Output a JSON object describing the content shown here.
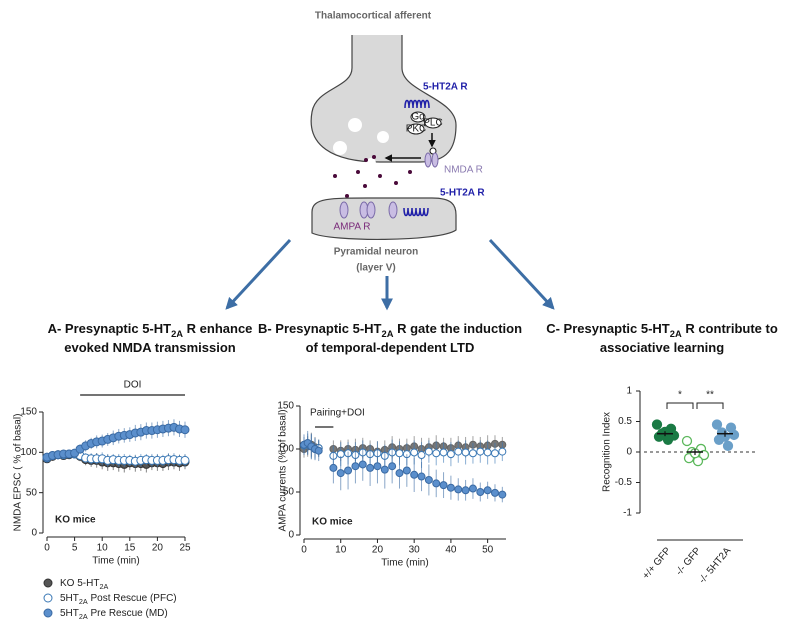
{
  "diagram": {
    "title": "Thalamocortical afferent",
    "receptor_top": "5-HT2A R",
    "gq": "Gq",
    "plc": "PLC",
    "pkc": "PKC",
    "nmda": "NMDA R",
    "receptor_bottom": "5-HT2A R",
    "ampa": "AMPA R",
    "neuron": "Pyramidal neuron",
    "layer": "(layer V)"
  },
  "chart_data": [
    {
      "type": "errorbar",
      "title": [
        "A- Presynaptic 5-HT2A R enhance",
        "evoked NMDA transmission"
      ],
      "x_label": "Time (min)",
      "y_label": "NMDA EPSC ( % of basal)",
      "annotation": "KO mice",
      "bar_label": "DOI",
      "bar_range": [
        6,
        25
      ],
      "x": [
        0,
        1,
        2,
        3,
        4,
        5,
        6,
        7,
        8,
        9,
        10,
        11,
        12,
        13,
        14,
        15,
        16,
        17,
        18,
        19,
        20,
        21,
        22,
        23,
        24,
        25
      ],
      "xlim": [
        0,
        25
      ],
      "xticks": [
        0,
        5,
        10,
        15,
        20,
        25
      ],
      "ylim": [
        0,
        150
      ],
      "yticks": [
        0,
        50,
        100,
        150
      ],
      "series": [
        {
          "name": "KO  5-HT2A",
          "color": "#555555",
          "edgecolor": "#333333",
          "values": [
            92,
            95,
            97,
            96,
            97,
            98,
            95,
            91,
            90,
            90,
            88,
            87,
            87,
            86,
            85,
            87,
            86,
            86,
            85,
            87,
            87,
            86,
            88,
            88,
            87,
            88
          ],
          "errors": [
            5,
            4,
            4,
            5,
            4,
            4,
            6,
            7,
            8,
            9,
            9,
            10,
            9,
            10,
            10,
            9,
            10,
            9,
            10,
            9,
            10,
            9,
            10,
            9,
            10,
            9
          ]
        },
        {
          "name": "5HT2A Post Rescue (PFC)",
          "color": "#ffffff",
          "edgecolor": "#3a78b5",
          "values": [
            93,
            96,
            97,
            97,
            98,
            98,
            96,
            93,
            92,
            92,
            92,
            90,
            91,
            90,
            90,
            90,
            89,
            90,
            91,
            90,
            90,
            90,
            91,
            91,
            90,
            90
          ],
          "errors": [
            5,
            4,
            4,
            4,
            4,
            5,
            6,
            6,
            7,
            7,
            8,
            8,
            7,
            8,
            8,
            7,
            8,
            8,
            7,
            8,
            8,
            7,
            8,
            8,
            7,
            8
          ]
        },
        {
          "name": "5HT2A Pre Rescue (MD)",
          "color": "#5b8fcc",
          "edgecolor": "#3a6aa3",
          "values": [
            94,
            96,
            97,
            98,
            98,
            99,
            104,
            108,
            111,
            113,
            114,
            116,
            118,
            120,
            121,
            122,
            124,
            125,
            127,
            127,
            128,
            129,
            130,
            131,
            129,
            128
          ],
          "errors": [
            5,
            4,
            4,
            4,
            5,
            5,
            6,
            7,
            7,
            8,
            8,
            8,
            9,
            9,
            9,
            9,
            10,
            10,
            10,
            10,
            10,
            10,
            10,
            10,
            10,
            10
          ]
        }
      ]
    },
    {
      "type": "errorbar",
      "title": [
        "B- Presynaptic 5-HT2A R gate the induction",
        "of temporal-dependent LTD"
      ],
      "x_label": "Time (min)",
      "y_label": "AMPA currents (% of basal)",
      "annotation": "KO mice",
      "bar_label": "Pairing+DOI",
      "bar_range": [
        3,
        8
      ],
      "x": [
        0,
        1,
        2,
        3,
        4,
        8,
        10,
        12,
        14,
        16,
        18,
        20,
        22,
        24,
        26,
        28,
        30,
        32,
        34,
        36,
        38,
        40,
        42,
        44,
        46,
        48,
        50,
        52,
        54
      ],
      "xlim": [
        0,
        55
      ],
      "xticks": [
        0,
        10,
        20,
        30,
        40,
        50
      ],
      "ylim": [
        0,
        150
      ],
      "yticks": [
        0,
        50,
        100,
        150
      ],
      "series": [
        {
          "color": "#777777",
          "edgecolor": "#666666",
          "values": [
            100,
            103,
            105,
            102,
            101,
            100,
            98,
            100,
            99,
            101,
            100,
            97,
            99,
            102,
            100,
            101,
            103,
            100,
            102,
            104,
            103,
            101,
            104,
            102,
            105,
            103,
            104,
            106,
            105
          ],
          "errors": [
            10,
            12,
            14,
            12,
            10,
            10,
            12,
            11,
            13,
            12,
            10,
            12,
            11,
            13,
            12,
            11,
            12,
            13,
            11,
            12,
            10,
            12,
            11,
            12,
            10,
            11,
            12,
            10,
            9
          ]
        },
        {
          "color": "#ffffff",
          "edgecolor": "#3a78b5",
          "values": [
            104,
            106,
            103,
            100,
            101,
            92,
            94,
            95,
            93,
            96,
            94,
            95,
            92,
            96,
            95,
            94,
            96,
            93,
            97,
            95,
            96,
            94,
            97,
            96,
            95,
            97,
            96,
            95,
            97
          ],
          "errors": [
            10,
            12,
            14,
            12,
            10,
            12,
            14,
            13,
            15,
            14,
            12,
            14,
            13,
            15,
            14,
            13,
            14,
            15,
            13,
            14,
            12,
            14,
            13,
            14,
            12,
            13,
            14,
            12,
            11
          ]
        },
        {
          "color": "#5b8fcc",
          "edgecolor": "#3a6aa3",
          "values": [
            105,
            107,
            103,
            100,
            98,
            78,
            72,
            75,
            80,
            82,
            78,
            80,
            76,
            80,
            72,
            75,
            70,
            68,
            64,
            60,
            58,
            55,
            53,
            52,
            54,
            50,
            52,
            49,
            47
          ],
          "errors": [
            12,
            14,
            15,
            13,
            12,
            18,
            20,
            22,
            20,
            19,
            21,
            20,
            22,
            20,
            18,
            19,
            20,
            17,
            18,
            16,
            15,
            14,
            13,
            12,
            12,
            11,
            10,
            10,
            9
          ]
        }
      ]
    },
    {
      "type": "dot",
      "title": [
        "C- Presynaptic 5-HT2A R contribute to",
        "associative learning"
      ],
      "y_label": "Recognition Index",
      "categories": [
        "+/+ GFP",
        "-/- GFP",
        "-/- 5HT2A"
      ],
      "colors": [
        "#1a7a44",
        "#5cb85c",
        "#6a9fc8"
      ],
      "filled": [
        true,
        false,
        true
      ],
      "values": [
        [
          0.45,
          0.38,
          0.3,
          0.27,
          0.25,
          0.2,
          0.33
        ],
        [
          0.18,
          0.05,
          0.0,
          -0.05,
          -0.1,
          -0.15,
          -0.02
        ],
        [
          0.45,
          0.4,
          0.32,
          0.28,
          0.2,
          0.1,
          0.25
        ]
      ],
      "means": [
        0.3,
        0.0,
        0.3
      ],
      "errors": [
        0.04,
        0.05,
        0.05
      ],
      "significance_labels": [
        "*",
        "**"
      ],
      "zero_line": true,
      "ylim": [
        -1,
        1
      ],
      "yticks": [
        -1,
        -0.5,
        0,
        0.5,
        1
      ]
    }
  ]
}
